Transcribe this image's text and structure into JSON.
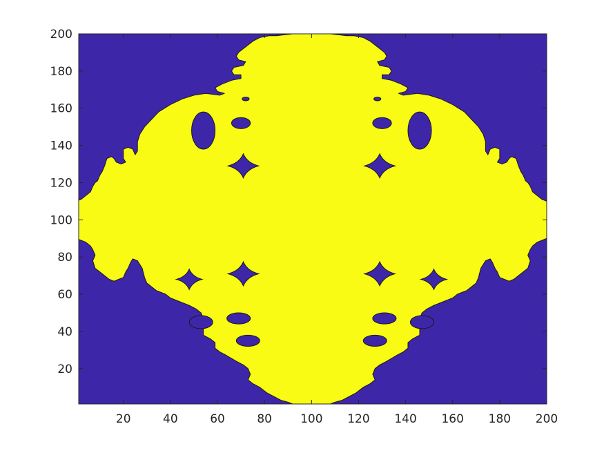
{
  "chart_data": {
    "type": "heatmap",
    "title": "",
    "xlabel": "",
    "ylabel": "",
    "xlim": [
      1,
      200
    ],
    "ylim": [
      1,
      200
    ],
    "x_ticks": [
      20,
      40,
      60,
      80,
      100,
      120,
      140,
      160,
      180,
      200
    ],
    "y_ticks": [
      20,
      40,
      60,
      80,
      100,
      120,
      140,
      160,
      180,
      200
    ],
    "x_tick_labels": [
      "20",
      "40",
      "60",
      "80",
      "100",
      "120",
      "140",
      "160",
      "180",
      "200"
    ],
    "y_tick_labels": [
      "20",
      "40",
      "60",
      "80",
      "100",
      "120",
      "140",
      "160",
      "180",
      "200"
    ],
    "levels": [
      0,
      1
    ],
    "colors": {
      "0": "#3e26a8",
      "1": "#f9fb15"
    },
    "grid": false,
    "legend": "none",
    "symmetry": "mirror about x = 100",
    "yellow_outline_right_half": [
      [
        108,
        200
      ],
      [
        115,
        199
      ],
      [
        118,
        199
      ],
      [
        122,
        198
      ],
      [
        125,
        196
      ],
      [
        127,
        194
      ],
      [
        129,
        192
      ],
      [
        131,
        190
      ],
      [
        132,
        188
      ],
      [
        131,
        186
      ],
      [
        128,
        185
      ],
      [
        129,
        183
      ],
      [
        133,
        182
      ],
      [
        134,
        180
      ],
      [
        133,
        178
      ],
      [
        130,
        178
      ],
      [
        130,
        176
      ],
      [
        134,
        175
      ],
      [
        138,
        173
      ],
      [
        141,
        171
      ],
      [
        140,
        169
      ],
      [
        137,
        168
      ],
      [
        139,
        167
      ],
      [
        145,
        168
      ],
      [
        150,
        167
      ],
      [
        155,
        165
      ],
      [
        160,
        162
      ],
      [
        165,
        158
      ],
      [
        168,
        154
      ],
      [
        171,
        150
      ],
      [
        173,
        146
      ],
      [
        174,
        142
      ],
      [
        174,
        137
      ],
      [
        175,
        135
      ],
      [
        176,
        138
      ],
      [
        178,
        139
      ],
      [
        180,
        138
      ],
      [
        180,
        136
      ],
      [
        180,
        133
      ],
      [
        179,
        131
      ],
      [
        181,
        130
      ],
      [
        183,
        131
      ],
      [
        184,
        133
      ],
      [
        185,
        134
      ],
      [
        187,
        133
      ],
      [
        188,
        129
      ],
      [
        189,
        126
      ],
      [
        190,
        124
      ],
      [
        191,
        121
      ],
      [
        192,
        120
      ],
      [
        193,
        118
      ],
      [
        194,
        115
      ],
      [
        196,
        113
      ],
      [
        198,
        111
      ],
      [
        200,
        110
      ],
      [
        200,
        90
      ],
      [
        198,
        89
      ],
      [
        196,
        88
      ],
      [
        194,
        86
      ],
      [
        193,
        84
      ],
      [
        192,
        81
      ],
      [
        193,
        78
      ],
      [
        192,
        74
      ],
      [
        190,
        72
      ],
      [
        188,
        70
      ],
      [
        186,
        68
      ],
      [
        184,
        67
      ],
      [
        182,
        68
      ],
      [
        180,
        69
      ],
      [
        179,
        72
      ],
      [
        178,
        74
      ],
      [
        177,
        77
      ],
      [
        176,
        79
      ],
      [
        174,
        78
      ],
      [
        172,
        74
      ],
      [
        171,
        69
      ],
      [
        170,
        66
      ],
      [
        168,
        64
      ],
      [
        166,
        62
      ],
      [
        164,
        61
      ],
      [
        162,
        60
      ],
      [
        160,
        58
      ],
      [
        156,
        56
      ],
      [
        152,
        54
      ],
      [
        149,
        52
      ],
      [
        147,
        50
      ],
      [
        146,
        47
      ],
      [
        146,
        44
      ],
      [
        146,
        41
      ],
      [
        146,
        38
      ],
      [
        143,
        36
      ],
      [
        141,
        34
      ],
      [
        141,
        31
      ],
      [
        139,
        29
      ],
      [
        136,
        27
      ],
      [
        132,
        24
      ],
      [
        129,
        22
      ],
      [
        127,
        20
      ],
      [
        126,
        17
      ],
      [
        127,
        14
      ],
      [
        125,
        12
      ],
      [
        122,
        10
      ],
      [
        119,
        7
      ],
      [
        116,
        5
      ],
      [
        113,
        3
      ],
      [
        110,
        2
      ],
      [
        108,
        1
      ],
      [
        100,
        1
      ]
    ],
    "blue_holes_right_half": [
      {
        "center": [
          129,
          129
        ],
        "rx": 6.5,
        "ry": 6.5,
        "shape": "diamond"
      },
      {
        "center": [
          129,
          71
        ],
        "rx": 6.5,
        "ry": 6.5,
        "shape": "diamond"
      },
      {
        "center": [
          128,
          165
        ],
        "rx": 1.5,
        "ry": 1.0,
        "shape": "ellipse"
      },
      {
        "center": [
          130,
          152
        ],
        "rx": 4,
        "ry": 3,
        "shape": "ellipse"
      },
      {
        "center": [
          152,
          68
        ],
        "rx": 5.5,
        "ry": 5.5,
        "shape": "diamond"
      },
      {
        "center": [
          131,
          47
        ],
        "rx": 5,
        "ry": 3,
        "shape": "ellipse"
      },
      {
        "center": [
          147,
          45
        ],
        "rx": 5,
        "ry": 3.5,
        "shape": "ellipse"
      },
      {
        "center": [
          127,
          35
        ],
        "rx": 5,
        "ry": 3,
        "shape": "ellipse"
      },
      {
        "center": [
          146,
          148
        ],
        "rx": 5,
        "ry": 10,
        "shape": "ellipse"
      }
    ]
  }
}
